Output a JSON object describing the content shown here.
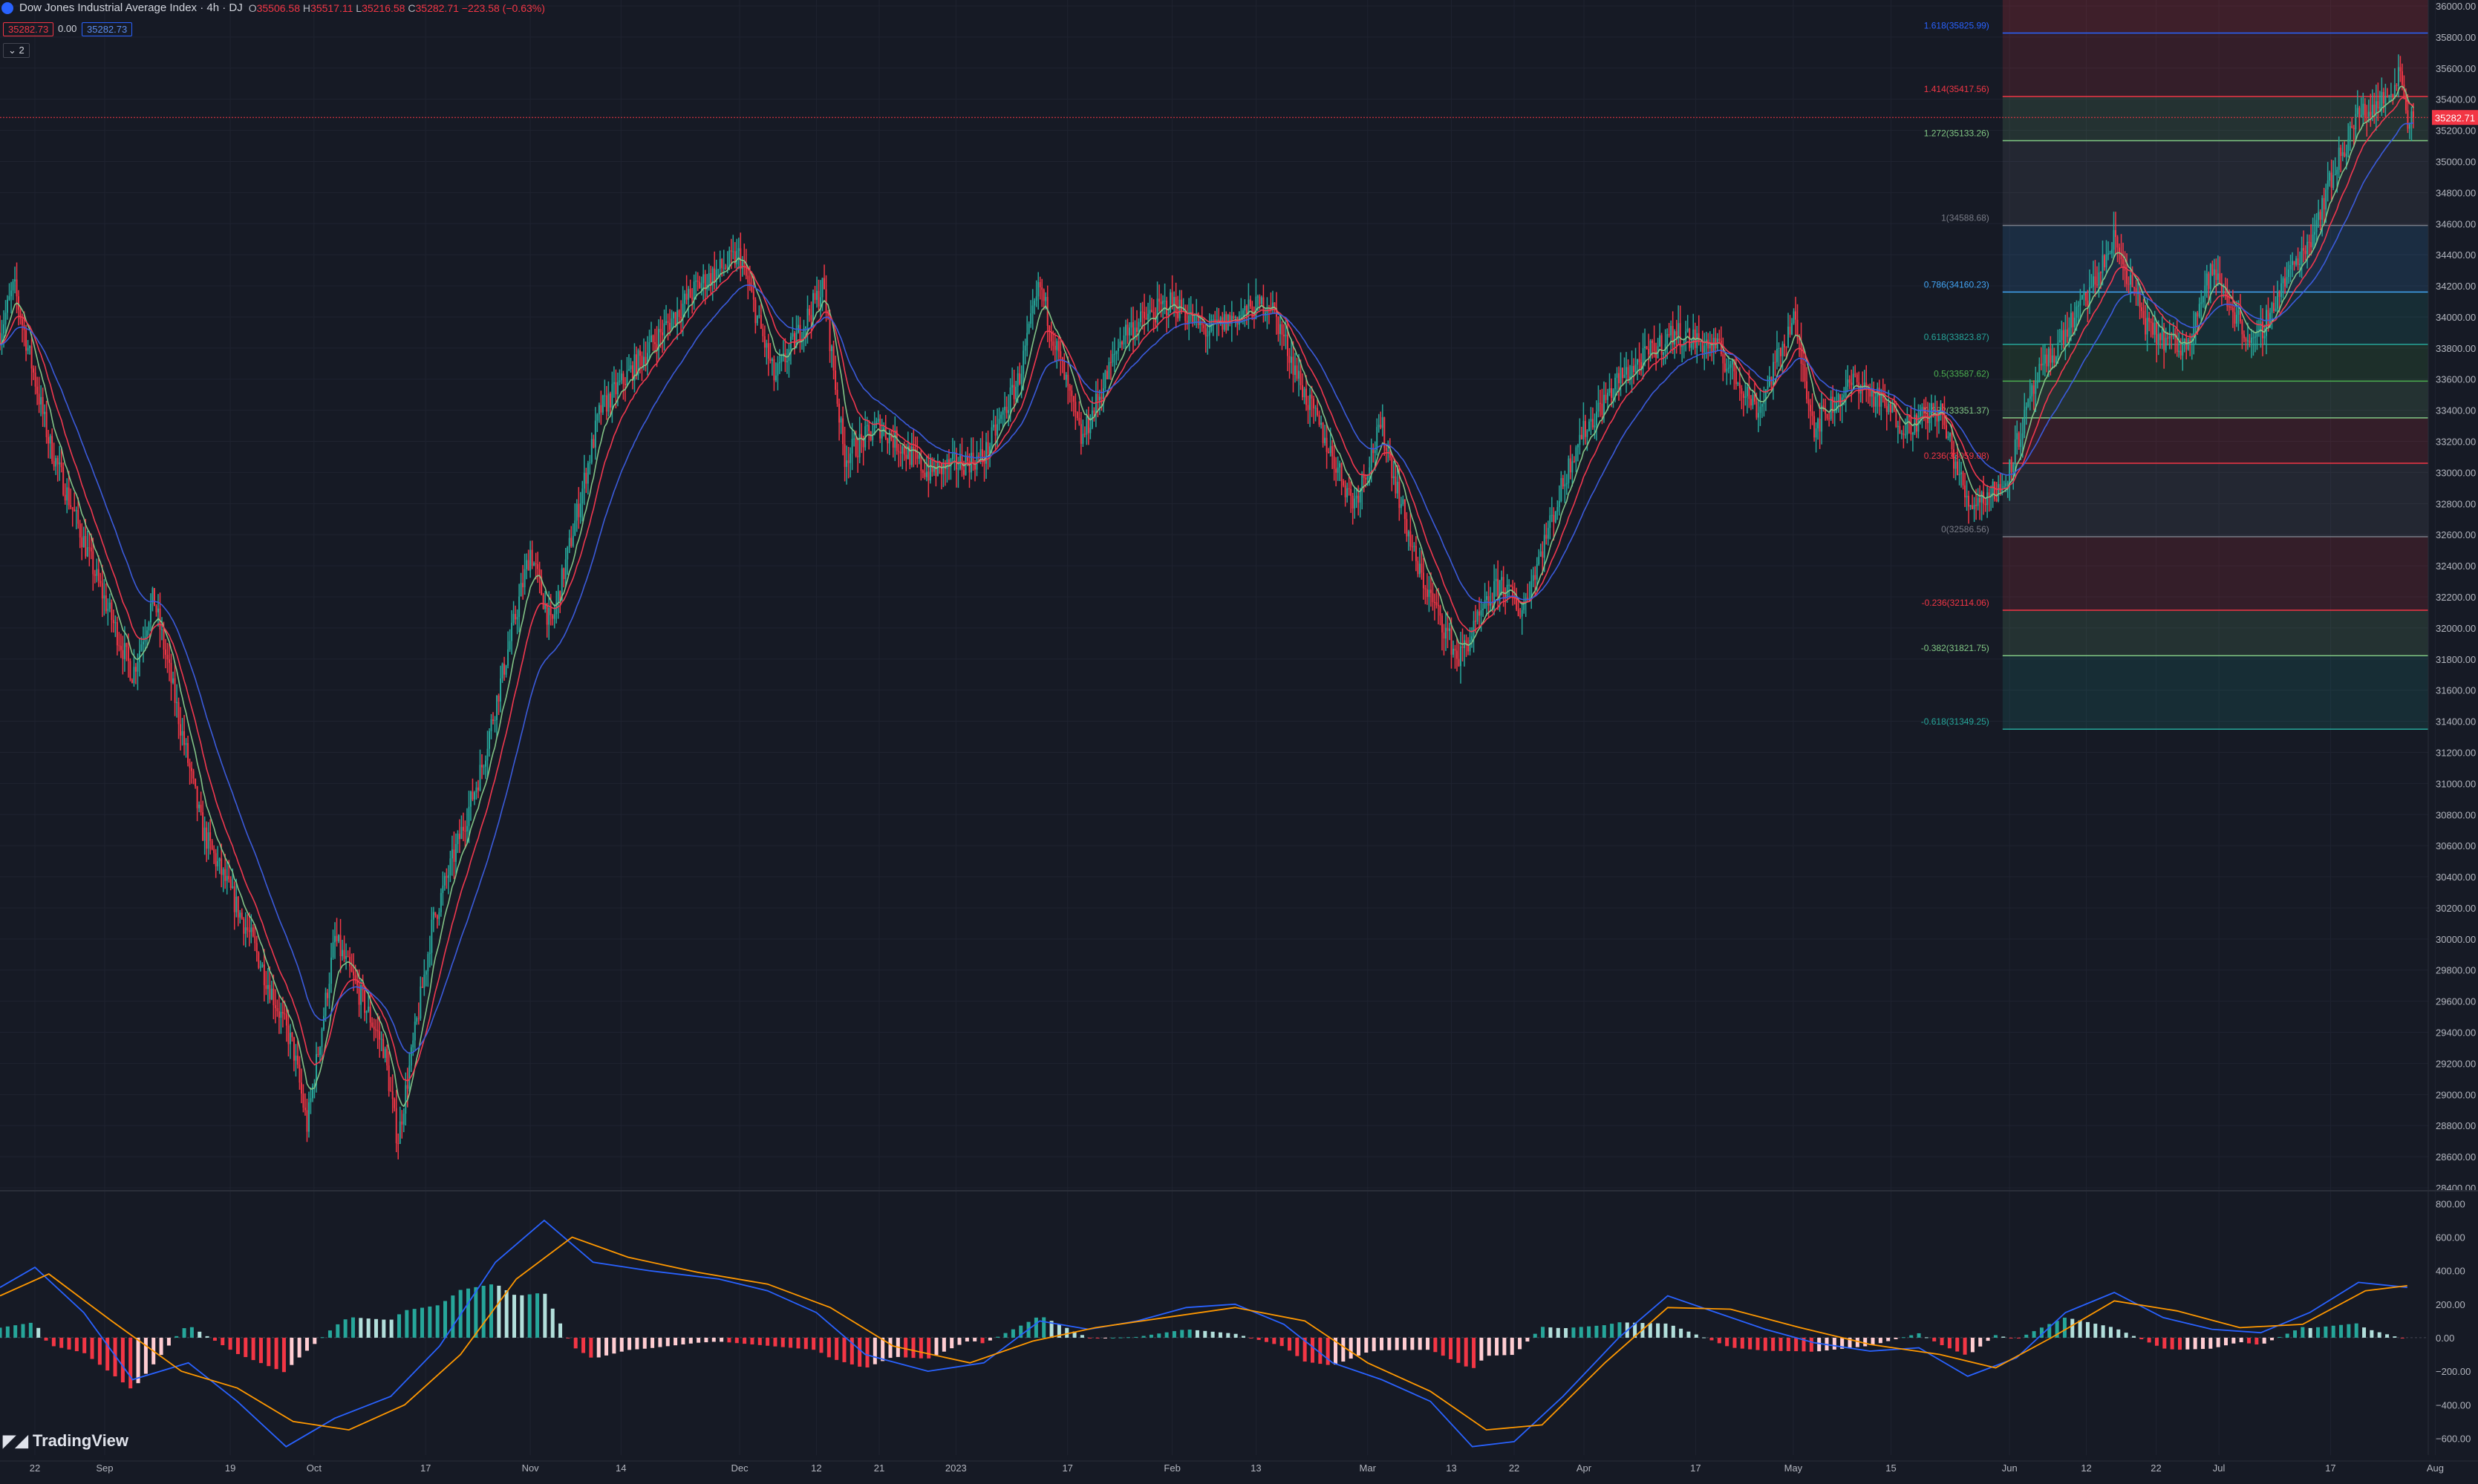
{
  "header": {
    "title": "Dow Jones Industrial Average Index · 4h · DJ",
    "o_label": "O",
    "o_value": "35506.58",
    "h_label": "H",
    "h_value": "35517.11",
    "l_label": "L",
    "l_value": "35216.58",
    "c_label": "C",
    "c_value": "35282.71",
    "change": "−223.58 (−0.63%)",
    "bid": "35282.73",
    "spread": "0.00",
    "ask": "35282.73",
    "indicators_toggle": "2"
  },
  "price_tag": "35282.71",
  "watermark": "TradingView",
  "colors": {
    "bg": "#161a25",
    "up": "#26a69a",
    "down": "#f23645",
    "ema_fast": "#82c386",
    "ema_mid": "#f0384f",
    "ema_slow": "#3b5bdb",
    "macd": "#2962ff",
    "signal": "#ff9800"
  },
  "chart_data": {
    "type": "candlestick",
    "title": "Dow Jones Industrial Average Index",
    "interval": "4h",
    "y_axis": {
      "min": 28400,
      "max": 36000,
      "step": 200,
      "ticks": [
        "36000.00",
        "35800.00",
        "35600.00",
        "35400.00",
        "35200.00",
        "35000.00",
        "34800.00",
        "34600.00",
        "34400.00",
        "34200.00",
        "34000.00",
        "33800.00",
        "33600.00",
        "33400.00",
        "33200.00",
        "33000.00",
        "32800.00",
        "32600.00",
        "32400.00",
        "32200.00",
        "32000.00",
        "31800.00",
        "31600.00",
        "31400.00",
        "31200.00",
        "31000.00",
        "30800.00",
        "30600.00",
        "30400.00",
        "30200.00",
        "30000.00",
        "29800.00",
        "29600.00",
        "29400.00",
        "29200.00",
        "29000.00",
        "28800.00",
        "28600.00",
        "28400.00"
      ]
    },
    "x_axis": {
      "range": [
        "2022-08-17",
        "2023-07-31"
      ],
      "ticks": [
        {
          "label": "22",
          "date": "2022-08-22"
        },
        {
          "label": "Sep",
          "date": "2022-09-01"
        },
        {
          "label": "19",
          "date": "2022-09-19"
        },
        {
          "label": "Oct",
          "date": "2022-10-01"
        },
        {
          "label": "17",
          "date": "2022-10-17"
        },
        {
          "label": "Nov",
          "date": "2022-11-01"
        },
        {
          "label": "14",
          "date": "2022-11-14"
        },
        {
          "label": "Dec",
          "date": "2022-12-01"
        },
        {
          "label": "12",
          "date": "2022-12-12"
        },
        {
          "label": "21",
          "date": "2022-12-21"
        },
        {
          "label": "2023",
          "date": "2023-01-01"
        },
        {
          "label": "17",
          "date": "2023-01-17"
        },
        {
          "label": "Feb",
          "date": "2023-02-01"
        },
        {
          "label": "13",
          "date": "2023-02-13"
        },
        {
          "label": "Mar",
          "date": "2023-03-01"
        },
        {
          "label": "13",
          "date": "2023-03-13"
        },
        {
          "label": "22",
          "date": "2023-03-22"
        },
        {
          "label": "Apr",
          "date": "2023-04-01"
        },
        {
          "label": "17",
          "date": "2023-04-17"
        },
        {
          "label": "May",
          "date": "2023-05-01"
        },
        {
          "label": "15",
          "date": "2023-05-15"
        },
        {
          "label": "Jun",
          "date": "2023-06-01"
        },
        {
          "label": "12",
          "date": "2023-06-12"
        },
        {
          "label": "22",
          "date": "2023-06-22"
        },
        {
          "label": "Jul",
          "date": "2023-07-01"
        },
        {
          "label": "17",
          "date": "2023-07-17"
        },
        {
          "label": "Aug",
          "date": "2023-08-01"
        }
      ]
    },
    "price_path": [
      {
        "date": "2022-08-17",
        "price": 33900
      },
      {
        "date": "2022-08-19",
        "price": 34200
      },
      {
        "date": "2022-08-24",
        "price": 33200
      },
      {
        "date": "2022-08-31",
        "price": 32300
      },
      {
        "date": "2022-09-05",
        "price": 31700
      },
      {
        "date": "2022-09-08",
        "price": 32200
      },
      {
        "date": "2022-09-15",
        "price": 30700
      },
      {
        "date": "2022-09-22",
        "price": 30000
      },
      {
        "date": "2022-09-28",
        "price": 29300
      },
      {
        "date": "2022-09-30",
        "price": 28800
      },
      {
        "date": "2022-10-04",
        "price": 30000
      },
      {
        "date": "2022-10-07",
        "price": 29700
      },
      {
        "date": "2022-10-11",
        "price": 29300
      },
      {
        "date": "2022-10-13",
        "price": 28700
      },
      {
        "date": "2022-10-18",
        "price": 30100
      },
      {
        "date": "2022-10-25",
        "price": 31100
      },
      {
        "date": "2022-11-01",
        "price": 32500
      },
      {
        "date": "2022-11-04",
        "price": 32000
      },
      {
        "date": "2022-11-11",
        "price": 33400
      },
      {
        "date": "2022-11-18",
        "price": 33800
      },
      {
        "date": "2022-11-25",
        "price": 34200
      },
      {
        "date": "2022-12-01",
        "price": 34400
      },
      {
        "date": "2022-12-06",
        "price": 33600
      },
      {
        "date": "2022-12-13",
        "price": 34200
      },
      {
        "date": "2022-12-16",
        "price": 33100
      },
      {
        "date": "2022-12-21",
        "price": 33300
      },
      {
        "date": "2022-12-28",
        "price": 33000
      },
      {
        "date": "2023-01-05",
        "price": 33100
      },
      {
        "date": "2023-01-10",
        "price": 33600
      },
      {
        "date": "2023-01-13",
        "price": 34200
      },
      {
        "date": "2023-01-19",
        "price": 33200
      },
      {
        "date": "2023-01-25",
        "price": 33900
      },
      {
        "date": "2023-02-01",
        "price": 34100
      },
      {
        "date": "2023-02-06",
        "price": 33900
      },
      {
        "date": "2023-02-10",
        "price": 34000
      },
      {
        "date": "2023-02-15",
        "price": 34100
      },
      {
        "date": "2023-02-20",
        "price": 33500
      },
      {
        "date": "2023-02-27",
        "price": 32800
      },
      {
        "date": "2023-03-03",
        "price": 33300
      },
      {
        "date": "2023-03-08",
        "price": 32400
      },
      {
        "date": "2023-03-14",
        "price": 31800
      },
      {
        "date": "2023-03-20",
        "price": 32300
      },
      {
        "date": "2023-03-23",
        "price": 32100
      },
      {
        "date": "2023-03-31",
        "price": 33200
      },
      {
        "date": "2023-04-06",
        "price": 33600
      },
      {
        "date": "2023-04-14",
        "price": 33900
      },
      {
        "date": "2023-04-20",
        "price": 33800
      },
      {
        "date": "2023-04-26",
        "price": 33400
      },
      {
        "date": "2023-05-01",
        "price": 34000
      },
      {
        "date": "2023-05-04",
        "price": 33300
      },
      {
        "date": "2023-05-10",
        "price": 33600
      },
      {
        "date": "2023-05-17",
        "price": 33300
      },
      {
        "date": "2023-05-22",
        "price": 33400
      },
      {
        "date": "2023-05-26",
        "price": 32800
      },
      {
        "date": "2023-05-31",
        "price": 32900
      },
      {
        "date": "2023-06-05",
        "price": 33600
      },
      {
        "date": "2023-06-09",
        "price": 33900
      },
      {
        "date": "2023-06-13",
        "price": 34200
      },
      {
        "date": "2023-06-16",
        "price": 34500
      },
      {
        "date": "2023-06-21",
        "price": 33900
      },
      {
        "date": "2023-06-26",
        "price": 33800
      },
      {
        "date": "2023-06-30",
        "price": 34300
      },
      {
        "date": "2023-07-06",
        "price": 33800
      },
      {
        "date": "2023-07-10",
        "price": 34200
      },
      {
        "date": "2023-07-14",
        "price": 34500
      },
      {
        "date": "2023-07-18",
        "price": 35000
      },
      {
        "date": "2023-07-21",
        "price": 35300
      },
      {
        "date": "2023-07-25",
        "price": 35400
      },
      {
        "date": "2023-07-27",
        "price": 35600
      },
      {
        "date": "2023-07-28",
        "price": 35282.71
      }
    ],
    "fib_levels": [
      {
        "ratio": "1.618",
        "price": 35825.99,
        "label": "1.618(35825.99)",
        "color": "#2962ff"
      },
      {
        "ratio": "1.414",
        "price": 35417.56,
        "label": "1.414(35417.56)",
        "color": "#f23645"
      },
      {
        "ratio": "1.272",
        "price": 35133.26,
        "label": "1.272(35133.26)",
        "color": "#81c784"
      },
      {
        "ratio": "1",
        "price": 34588.68,
        "label": "1(34588.68)",
        "color": "#787b86"
      },
      {
        "ratio": "0.786",
        "price": 34160.23,
        "label": "0.786(34160.23)",
        "color": "#42a5f5"
      },
      {
        "ratio": "0.618",
        "price": 33823.87,
        "label": "0.618(33823.87)",
        "color": "#26a69a"
      },
      {
        "ratio": "0.5",
        "price": 33587.62,
        "label": "0.5(33587.62)",
        "color": "#4caf50"
      },
      {
        "ratio": "0.382",
        "price": 33351.37,
        "label": "0.382(33351.37)",
        "color": "#81c784"
      },
      {
        "ratio": "0.236",
        "price": 33059.08,
        "label": "0.236(33059.08)",
        "color": "#f23645"
      },
      {
        "ratio": "0",
        "price": 32586.56,
        "label": "0(32586.56)",
        "color": "#787b86"
      },
      {
        "ratio": "-0.236",
        "price": 32114.06,
        "label": "-0.236(32114.06)",
        "color": "#f23645"
      },
      {
        "ratio": "-0.382",
        "price": 31821.75,
        "label": "-0.382(31821.75)",
        "color": "#81c784"
      },
      {
        "ratio": "-0.618",
        "price": 31349.25,
        "label": "-0.618(31349.25)",
        "color": "#26a69a"
      }
    ],
    "fib_start_date": "2023-05-31",
    "macd": {
      "y_min": -700,
      "y_max": 850,
      "ticks": [
        "800.00",
        "600.00",
        "400.00",
        "200.00",
        "0.00",
        "−200.00",
        "−400.00",
        "−600.00"
      ],
      "macd_path": [
        {
          "date": "2022-08-17",
          "value": 300
        },
        {
          "date": "2022-08-22",
          "value": 420
        },
        {
          "date": "2022-08-29",
          "value": 150
        },
        {
          "date": "2022-09-05",
          "value": -250
        },
        {
          "date": "2022-09-13",
          "value": -150
        },
        {
          "date": "2022-09-20",
          "value": -380
        },
        {
          "date": "2022-09-27",
          "value": -650
        },
        {
          "date": "2022-10-04",
          "value": -480
        },
        {
          "date": "2022-10-12",
          "value": -350
        },
        {
          "date": "2022-10-19",
          "value": -50
        },
        {
          "date": "2022-10-27",
          "value": 450
        },
        {
          "date": "2022-11-03",
          "value": 700
        },
        {
          "date": "2022-11-10",
          "value": 450
        },
        {
          "date": "2022-11-18",
          "value": 400
        },
        {
          "date": "2022-11-28",
          "value": 350
        },
        {
          "date": "2022-12-05",
          "value": 280
        },
        {
          "date": "2022-12-12",
          "value": 150
        },
        {
          "date": "2022-12-19",
          "value": -100
        },
        {
          "date": "2022-12-28",
          "value": -200
        },
        {
          "date": "2023-01-05",
          "value": -150
        },
        {
          "date": "2023-01-13",
          "value": 100
        },
        {
          "date": "2023-01-20",
          "value": 50
        },
        {
          "date": "2023-01-27",
          "value": 100
        },
        {
          "date": "2023-02-03",
          "value": 180
        },
        {
          "date": "2023-02-10",
          "value": 200
        },
        {
          "date": "2023-02-17",
          "value": 80
        },
        {
          "date": "2023-02-24",
          "value": -150
        },
        {
          "date": "2023-03-03",
          "value": -250
        },
        {
          "date": "2023-03-10",
          "value": -380
        },
        {
          "date": "2023-03-16",
          "value": -650
        },
        {
          "date": "2023-03-22",
          "value": -620
        },
        {
          "date": "2023-03-29",
          "value": -350
        },
        {
          "date": "2023-04-06",
          "value": 0
        },
        {
          "date": "2023-04-13",
          "value": 250
        },
        {
          "date": "2023-04-20",
          "value": 150
        },
        {
          "date": "2023-04-27",
          "value": 50
        },
        {
          "date": "2023-05-04",
          "value": -30
        },
        {
          "date": "2023-05-12",
          "value": -80
        },
        {
          "date": "2023-05-19",
          "value": -60
        },
        {
          "date": "2023-05-26",
          "value": -230
        },
        {
          "date": "2023-06-02",
          "value": -120
        },
        {
          "date": "2023-06-09",
          "value": 150
        },
        {
          "date": "2023-06-16",
          "value": 270
        },
        {
          "date": "2023-06-23",
          "value": 120
        },
        {
          "date": "2023-06-30",
          "value": 50
        },
        {
          "date": "2023-07-07",
          "value": 30
        },
        {
          "date": "2023-07-14",
          "value": 150
        },
        {
          "date": "2023-07-21",
          "value": 330
        },
        {
          "date": "2023-07-28",
          "value": 300
        }
      ],
      "signal_path": [
        {
          "date": "2022-08-17",
          "value": 250
        },
        {
          "date": "2022-08-24",
          "value": 380
        },
        {
          "date": "2022-09-02",
          "value": 100
        },
        {
          "date": "2022-09-12",
          "value": -200
        },
        {
          "date": "2022-09-20",
          "value": -300
        },
        {
          "date": "2022-09-28",
          "value": -500
        },
        {
          "date": "2022-10-06",
          "value": -550
        },
        {
          "date": "2022-10-14",
          "value": -400
        },
        {
          "date": "2022-10-22",
          "value": -100
        },
        {
          "date": "2022-10-30",
          "value": 350
        },
        {
          "date": "2022-11-07",
          "value": 600
        },
        {
          "date": "2022-11-15",
          "value": 480
        },
        {
          "date": "2022-11-25",
          "value": 390
        },
        {
          "date": "2022-12-05",
          "value": 320
        },
        {
          "date": "2022-12-14",
          "value": 180
        },
        {
          "date": "2022-12-23",
          "value": -50
        },
        {
          "date": "2023-01-03",
          "value": -150
        },
        {
          "date": "2023-01-12",
          "value": -20
        },
        {
          "date": "2023-01-21",
          "value": 60
        },
        {
          "date": "2023-01-31",
          "value": 120
        },
        {
          "date": "2023-02-10",
          "value": 180
        },
        {
          "date": "2023-02-20",
          "value": 100
        },
        {
          "date": "2023-03-01",
          "value": -150
        },
        {
          "date": "2023-03-10",
          "value": -320
        },
        {
          "date": "2023-03-18",
          "value": -550
        },
        {
          "date": "2023-03-26",
          "value": -520
        },
        {
          "date": "2023-04-04",
          "value": -150
        },
        {
          "date": "2023-04-13",
          "value": 180
        },
        {
          "date": "2023-04-22",
          "value": 170
        },
        {
          "date": "2023-05-02",
          "value": 60
        },
        {
          "date": "2023-05-12",
          "value": -40
        },
        {
          "date": "2023-05-22",
          "value": -100
        },
        {
          "date": "2023-05-30",
          "value": -180
        },
        {
          "date": "2023-06-07",
          "value": 0
        },
        {
          "date": "2023-06-16",
          "value": 220
        },
        {
          "date": "2023-06-25",
          "value": 160
        },
        {
          "date": "2023-07-04",
          "value": 60
        },
        {
          "date": "2023-07-13",
          "value": 80
        },
        {
          "date": "2023-07-22",
          "value": 280
        },
        {
          "date": "2023-07-28",
          "value": 310
        }
      ]
    }
  }
}
